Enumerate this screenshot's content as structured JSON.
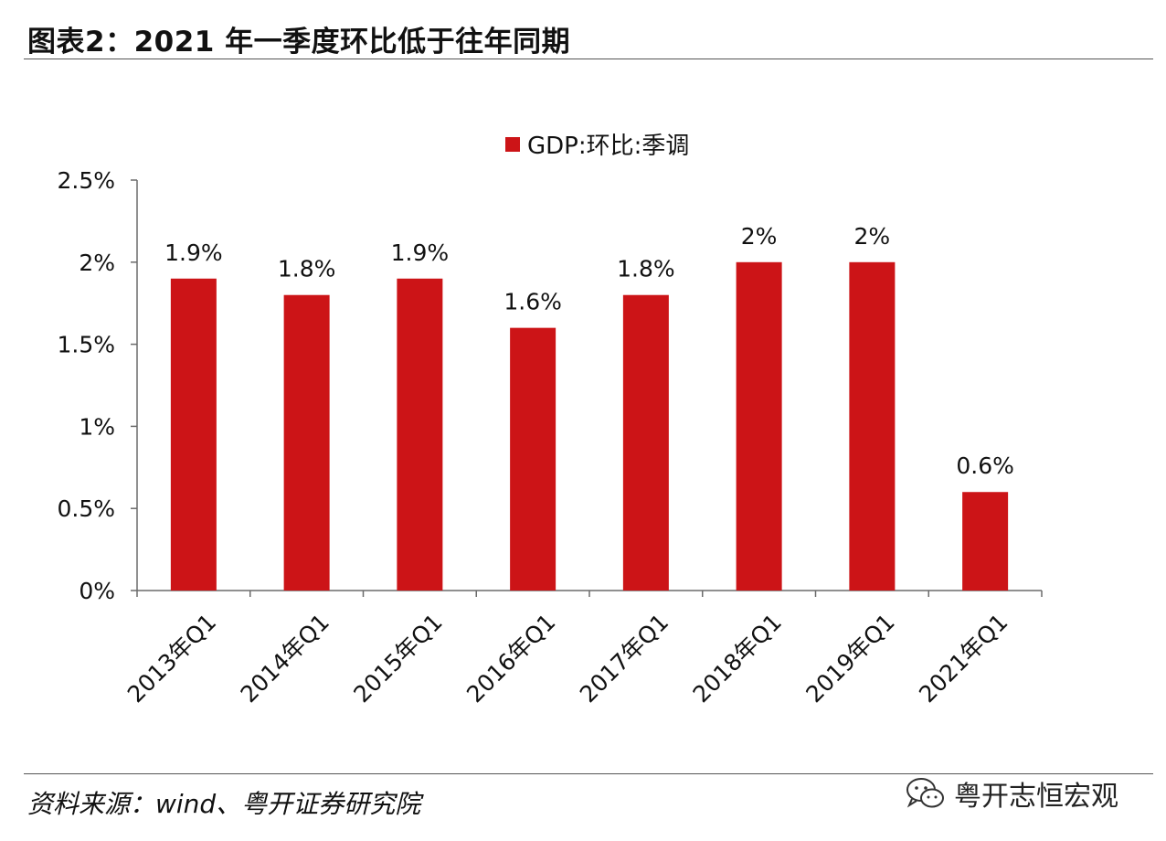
{
  "title": "图表2：2021 年一季度环比低于往年同期",
  "source": "资料来源：wind、粤开证券研究院",
  "watermark": {
    "text": "粤开志恒宏观",
    "icon": "wechat-icon"
  },
  "colors": {
    "bar": "#cc1417",
    "axis": "#6b6b6b"
  },
  "chart_data": {
    "type": "bar",
    "title": "",
    "xlabel": "",
    "ylabel": "",
    "ylim": [
      0,
      2.5
    ],
    "yticks": [
      "0%",
      "0.5%",
      "1%",
      "1.5%",
      "2%",
      "2.5%"
    ],
    "legend": {
      "position": "top-center",
      "entries": [
        "GDP:环比:季调"
      ]
    },
    "categories": [
      "2013年Q1",
      "2014年Q1",
      "2015年Q1",
      "2016年Q1",
      "2017年Q1",
      "2018年Q1",
      "2019年Q1",
      "2021年Q1"
    ],
    "series": [
      {
        "name": "GDP:环比:季调",
        "values": [
          1.9,
          1.8,
          1.9,
          1.6,
          1.8,
          2.0,
          2.0,
          0.6
        ],
        "labels": [
          "1.9%",
          "1.8%",
          "1.9%",
          "1.6%",
          "1.8%",
          "2%",
          "2%",
          "0.6%"
        ]
      }
    ]
  }
}
